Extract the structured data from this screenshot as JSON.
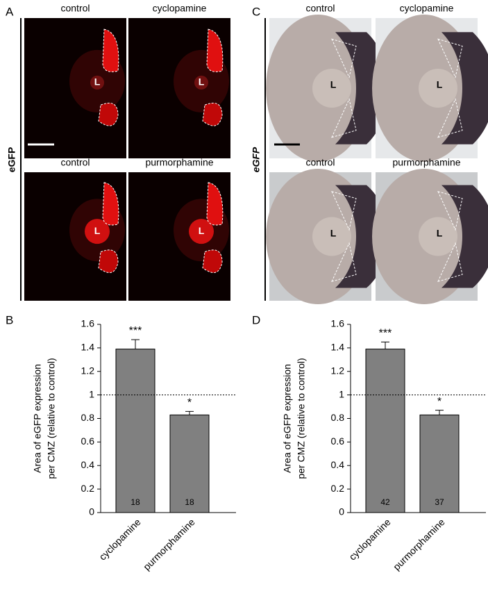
{
  "panels": {
    "A": {
      "letter": "A",
      "side_label": "eGFP",
      "images": [
        "control",
        "cyclopamine",
        "control",
        "purmorphamine"
      ],
      "lens": "L"
    },
    "B": {
      "letter": "B"
    },
    "C": {
      "letter": "C",
      "side_label": "eGFP",
      "images": [
        "control",
        "cyclopamine",
        "control",
        "purmorphamine"
      ],
      "lens": "L"
    },
    "D": {
      "letter": "D"
    }
  },
  "chart_data": [
    {
      "type": "bar",
      "ylabel": [
        "Area of eGFP expression",
        "per CMZ (relative to control)"
      ],
      "categories": [
        "cyclopamine",
        "purmorphamine"
      ],
      "values": [
        1.39,
        0.83
      ],
      "errors": [
        0.08,
        0.03
      ],
      "annotations": [
        "***",
        "*"
      ],
      "n": [
        18,
        18
      ],
      "color": "#808080",
      "reference_line": 1,
      "ylim": [
        0,
        1.6
      ],
      "yticks": [
        0,
        0.2,
        0.4,
        0.6,
        0.8,
        1,
        1.2,
        1.4,
        1.6
      ]
    },
    {
      "type": "bar",
      "ylabel": [
        "Area of eGFP expression",
        "per CMZ (relative to control)"
      ],
      "categories": [
        "cyclopamine",
        "purmorphamine"
      ],
      "values": [
        1.39,
        0.83
      ],
      "errors": [
        0.06,
        0.04
      ],
      "annotations": [
        "***",
        "*"
      ],
      "n": [
        42,
        37
      ],
      "color": "#808080",
      "reference_line": 1,
      "ylim": [
        0,
        1.6
      ],
      "yticks": [
        0,
        0.2,
        0.4,
        0.6,
        0.8,
        1,
        1.2,
        1.4,
        1.6
      ]
    }
  ]
}
